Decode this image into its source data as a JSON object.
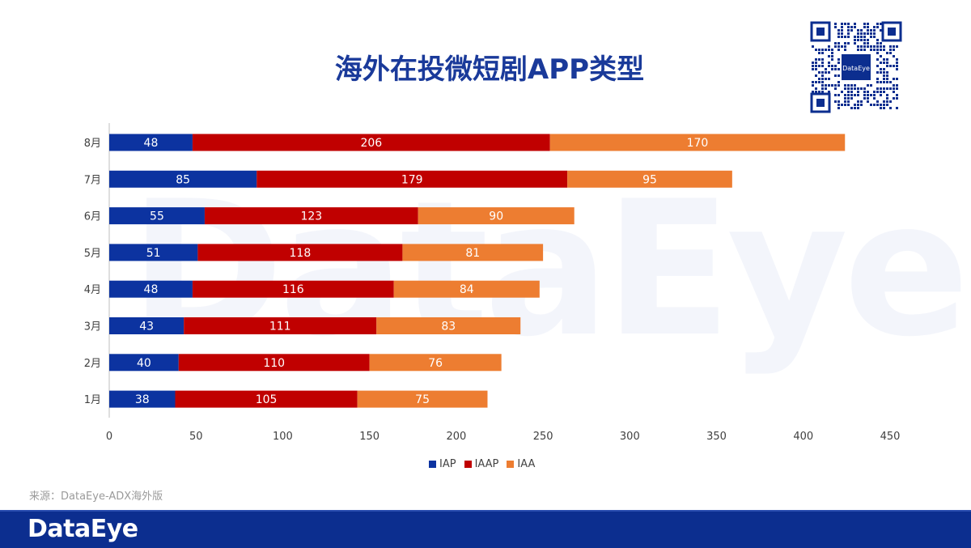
{
  "title": "海外在投微短剧APP类型",
  "source": "来源：DataEye-ADX海外版",
  "footer_logo": "DataEye",
  "watermark": "DataEye",
  "qr_logo": "DataEye",
  "colors": {
    "IAP": "#0c33a0",
    "IAAP": "#c00000",
    "IAA": "#ed7d31",
    "title": "#1a3a9a",
    "footer": "#0c2e8f"
  },
  "legend": [
    {
      "key": "IAP",
      "label": "IAP"
    },
    {
      "key": "IAAP",
      "label": "IAAP"
    },
    {
      "key": "IAA",
      "label": "IAA"
    }
  ],
  "chart_data": {
    "type": "bar",
    "orientation": "horizontal",
    "stacked": true,
    "title": "海外在投微短剧APP类型",
    "categories": [
      "8月",
      "7月",
      "6月",
      "5月",
      "4月",
      "3月",
      "2月",
      "1月"
    ],
    "series": [
      {
        "name": "IAP",
        "values": [
          48,
          85,
          55,
          51,
          48,
          43,
          40,
          38
        ]
      },
      {
        "name": "IAAP",
        "values": [
          206,
          179,
          123,
          118,
          116,
          111,
          110,
          105
        ]
      },
      {
        "name": "IAA",
        "values": [
          170,
          95,
          90,
          81,
          84,
          83,
          76,
          75
        ]
      }
    ],
    "xlim": [
      0,
      450
    ],
    "xticks": [
      0,
      50,
      100,
      150,
      200,
      250,
      300,
      350,
      400,
      450
    ],
    "legend_position": "bottom",
    "grid": false
  }
}
